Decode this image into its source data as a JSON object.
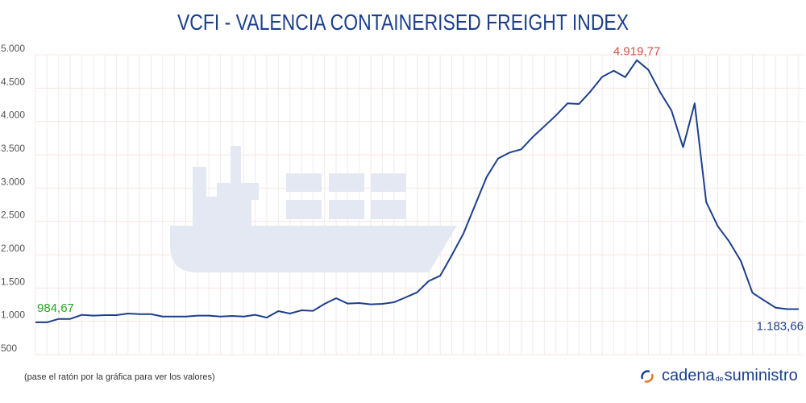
{
  "chart_data": {
    "type": "line",
    "title": "VCFI - VALENCIA CONTAINERISED FREIGHT INDEX",
    "xlabel": "",
    "ylabel": "",
    "ylim": [
      500,
      5000
    ],
    "yticks": [
      500,
      1000,
      1500,
      2000,
      2500,
      3000,
      3500,
      4000,
      4500,
      5000
    ],
    "ytick_labels": [
      "500",
      "1.000",
      "1.500",
      "2.000",
      "2.500",
      "3.000",
      "3.500",
      "4.000",
      "4.500",
      "5.000"
    ],
    "grid": true,
    "series": [
      {
        "name": "VCFI",
        "color": "#1c3f8c",
        "values": [
          984.67,
          985,
          1036,
          1036,
          1097,
          1085,
          1093,
          1093,
          1117,
          1108,
          1108,
          1072,
          1072,
          1072,
          1085,
          1085,
          1072,
          1080,
          1072,
          1097,
          1056,
          1153,
          1117,
          1165,
          1157,
          1262,
          1347,
          1266,
          1274,
          1254,
          1262,
          1286,
          1359,
          1435,
          1604,
          1685,
          1992,
          2315,
          2738,
          3161,
          3443,
          3533,
          3581,
          3766,
          3927,
          4089,
          4271,
          4262,
          4452,
          4669,
          4761,
          4665,
          4919.77,
          4774,
          4444,
          4162,
          3613,
          4271,
          2790,
          2427,
          2194,
          1903,
          1428,
          1314,
          1205,
          1184,
          1183.66
        ]
      }
    ],
    "annotations": [
      {
        "index": 0,
        "text": "984,67",
        "color": "#2aa52a"
      },
      {
        "index": 52,
        "text": "4.919,77",
        "color": "#d0504a"
      },
      {
        "index": 66,
        "text": "1.183,66",
        "color": "#1c3f8c"
      }
    ]
  },
  "footer": {
    "hint": "(pase el ratón por la gráfica para ver los valores)",
    "logo_main": "cadena",
    "logo_de": "de",
    "logo_end": "suministro"
  }
}
